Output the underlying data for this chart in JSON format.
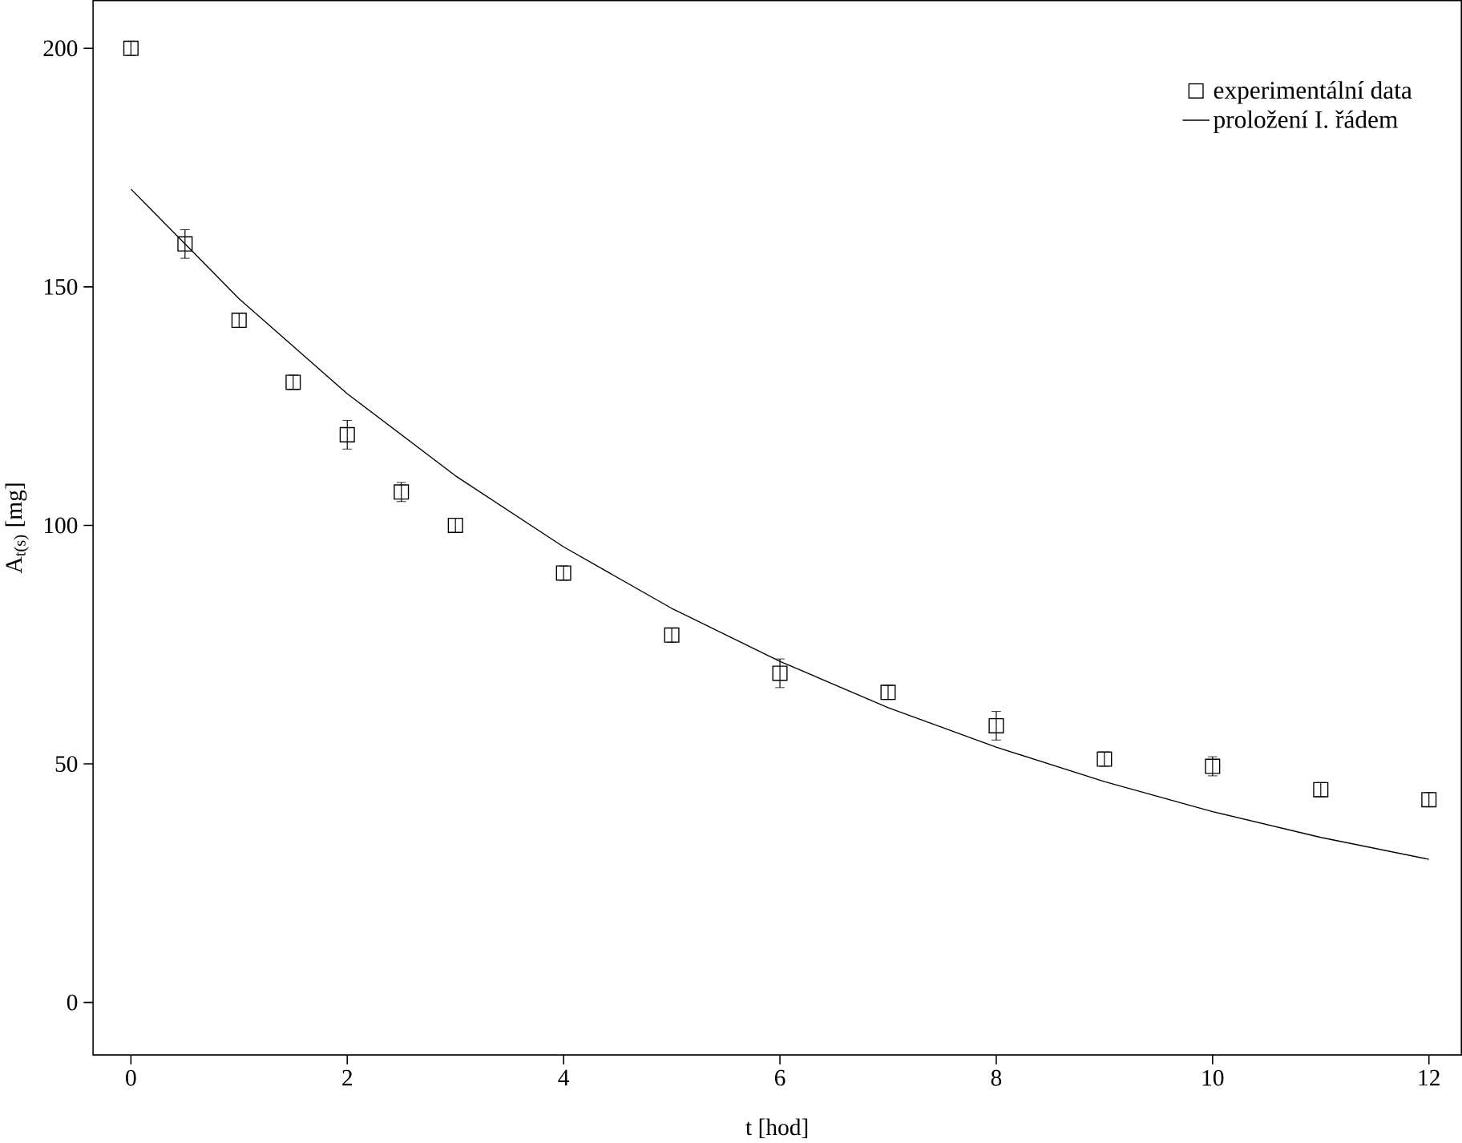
{
  "chart_data": {
    "type": "scatter",
    "xlabel": "t [hod]",
    "ylabel": "A$_{t(s)}$ [mg]",
    "xlim": [
      -0.35,
      12.3
    ],
    "ylim": [
      -11,
      210
    ],
    "xticks": [
      0,
      2,
      4,
      6,
      8,
      10,
      12
    ],
    "yticks": [
      0,
      50,
      100,
      150,
      200
    ],
    "legend": "top right",
    "grid": false,
    "marker": "square",
    "series": [
      {
        "name": "experimentální data",
        "color": "#000000",
        "x": [
          0,
          0.5,
          1,
          1.5,
          2,
          2.5,
          3,
          4,
          5,
          6,
          7,
          8,
          9,
          10,
          11,
          12
        ],
        "values": [
          200,
          159,
          143,
          130,
          119,
          107,
          100,
          90,
          77,
          69,
          65,
          58,
          51,
          49.5,
          44.6,
          42.5
        ],
        "errors": [
          1.5,
          3,
          1.5,
          1.5,
          3,
          2,
          1.5,
          1.5,
          1.5,
          3,
          1.5,
          3,
          1.5,
          2,
          1.5,
          1.5
        ]
      },
      {
        "name": "proložení I. řádem",
        "type": "line",
        "color": "#000000",
        "marker": "none",
        "line_style": "solid",
        "x": [
          0,
          1,
          2,
          3,
          4,
          5,
          6,
          7,
          8,
          9,
          10,
          11,
          12
        ],
        "values": [
          170.5,
          147.5,
          127.6,
          110.4,
          95.5,
          82.6,
          71.5,
          61.8,
          53.5,
          46.3,
          40,
          34.6,
          30
        ]
      }
    ]
  }
}
